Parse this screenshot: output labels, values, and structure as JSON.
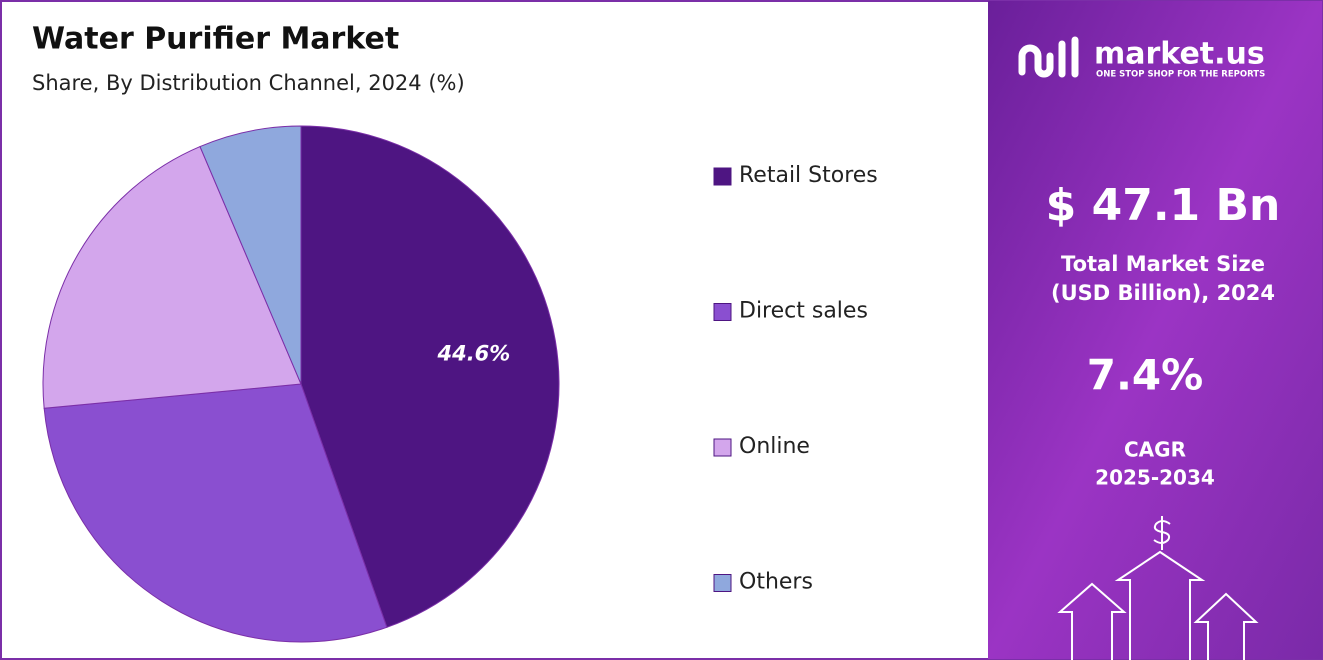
{
  "chart_data": {
    "type": "pie",
    "title": "Water Purifier Market",
    "subtitle": "Share, By Distribution Channel, 2024 (%)",
    "categories": [
      "Retail Stores",
      "Direct sales",
      "Online",
      "Others"
    ],
    "values": [
      44.6,
      28.9,
      20.1,
      6.4
    ],
    "value_labels": [
      "44.6%",
      null,
      null,
      null
    ],
    "colors": [
      "#4e1582",
      "#8a4fd0",
      "#d3a6ec",
      "#8fa8dd"
    ],
    "legend": "right"
  },
  "side_panel": {
    "brand": "market.us",
    "tagline": "ONE STOP SHOP FOR THE REPORTS",
    "market_size": "$ 47.1 Bn",
    "market_size_label": [
      "Total Market Size",
      "(USD Billion), 2024"
    ],
    "cagr": "7.4%",
    "cagr_label": [
      "CAGR",
      "2025-2034"
    ]
  }
}
